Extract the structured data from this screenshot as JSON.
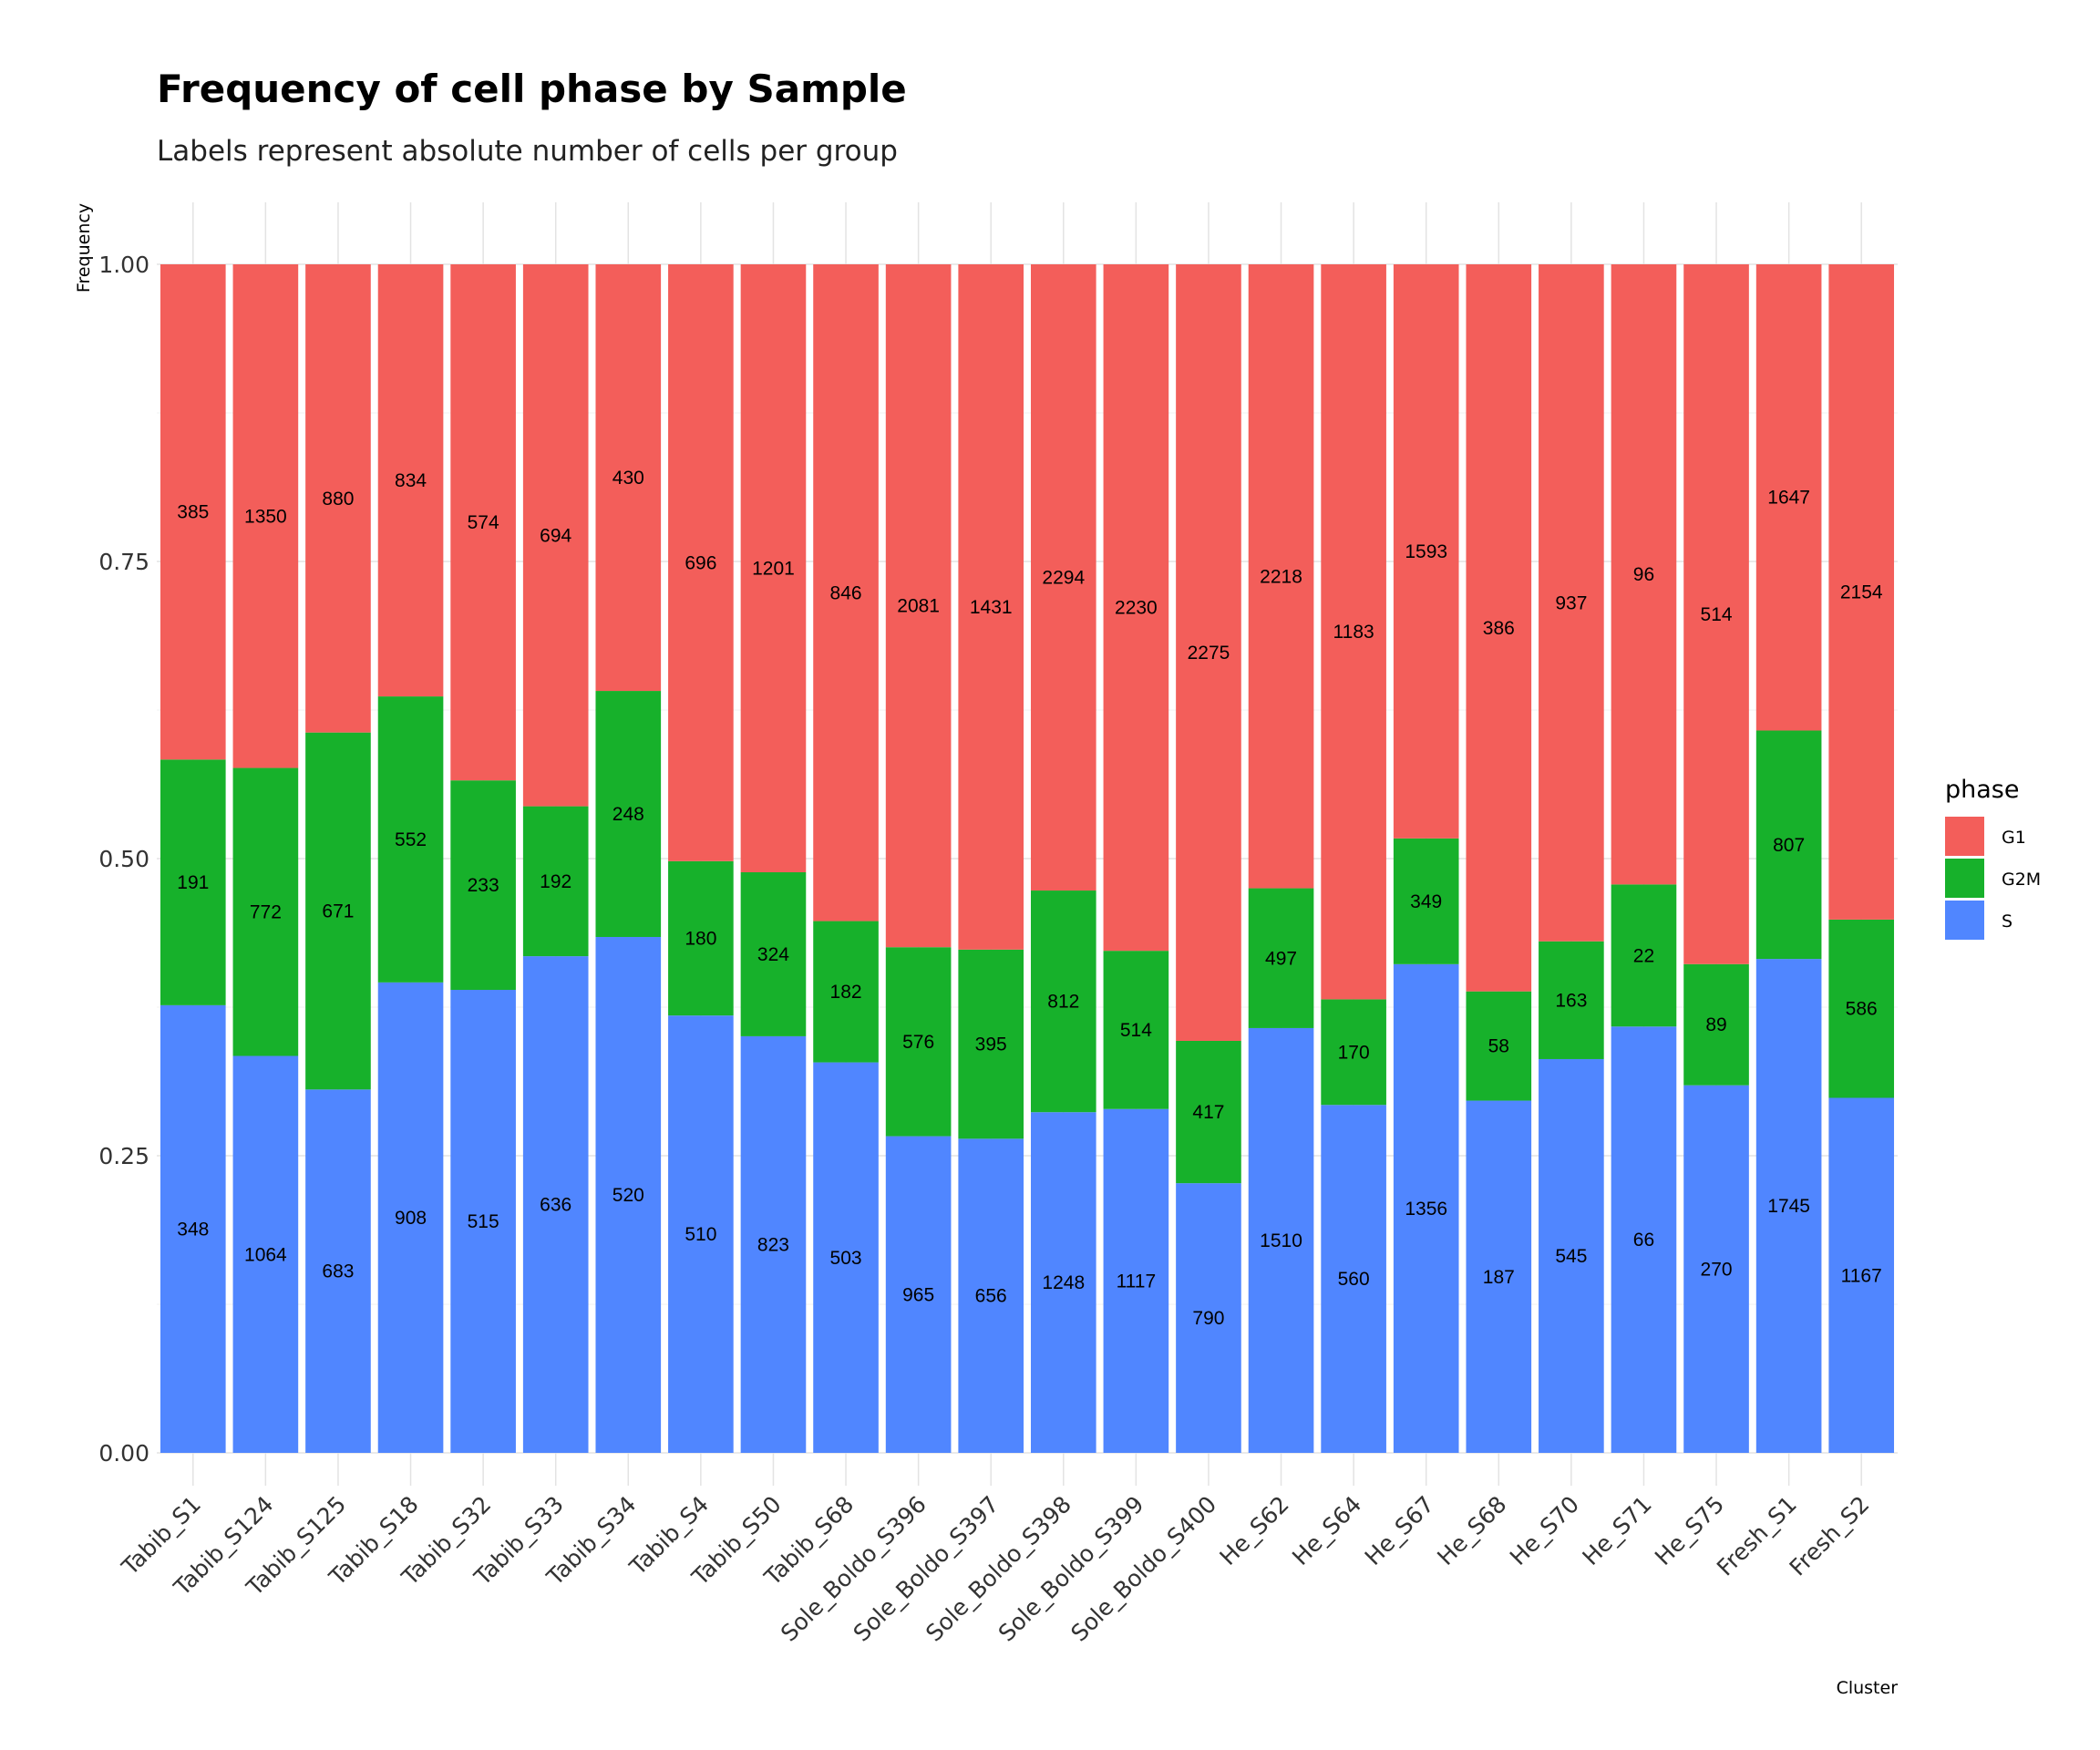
{
  "chart_data": {
    "type": "bar",
    "stacked": true,
    "normalized": true,
    "title": "Frequency of cell phase by Sample",
    "subtitle": "Labels represent absolute number of cells per group",
    "xlabel": "Cluster",
    "ylabel": "Frequency",
    "ylim": [
      0,
      1
    ],
    "yticks": [
      "0.00",
      "0.25",
      "0.50",
      "0.75",
      "1.00"
    ],
    "grid": true,
    "legend": {
      "title": "phase",
      "position": "right"
    },
    "categories": [
      "Tabib_S1",
      "Tabib_S124",
      "Tabib_S125",
      "Tabib_S18",
      "Tabib_S32",
      "Tabib_S33",
      "Tabib_S34",
      "Tabib_S4",
      "Tabib_S50",
      "Tabib_S68",
      "Sole_Boldo_S396",
      "Sole_Boldo_S397",
      "Sole_Boldo_S398",
      "Sole_Boldo_S399",
      "Sole_Boldo_S400",
      "He_S62",
      "He_S64",
      "He_S67",
      "He_S68",
      "He_S70",
      "He_S71",
      "He_S75",
      "Fresh_S1",
      "Fresh_S2"
    ],
    "series": [
      {
        "name": "G1",
        "color": "#F35E5A",
        "values": [
          385,
          1350,
          880,
          834,
          574,
          694,
          430,
          696,
          1201,
          846,
          2081,
          1431,
          2294,
          2230,
          2275,
          2218,
          1183,
          1593,
          386,
          937,
          96,
          514,
          1647,
          2154
        ]
      },
      {
        "name": "G2M",
        "color": "#17B12B",
        "values": [
          191,
          772,
          671,
          552,
          233,
          192,
          248,
          180,
          324,
          182,
          576,
          395,
          812,
          514,
          417,
          497,
          170,
          349,
          58,
          163,
          22,
          89,
          807,
          586
        ]
      },
      {
        "name": "S",
        "color": "#5086FF",
        "values": [
          348,
          1064,
          683,
          908,
          515,
          636,
          520,
          510,
          823,
          503,
          965,
          656,
          1248,
          1117,
          790,
          1510,
          560,
          1356,
          187,
          545,
          66,
          270,
          1745,
          1167
        ]
      }
    ]
  }
}
